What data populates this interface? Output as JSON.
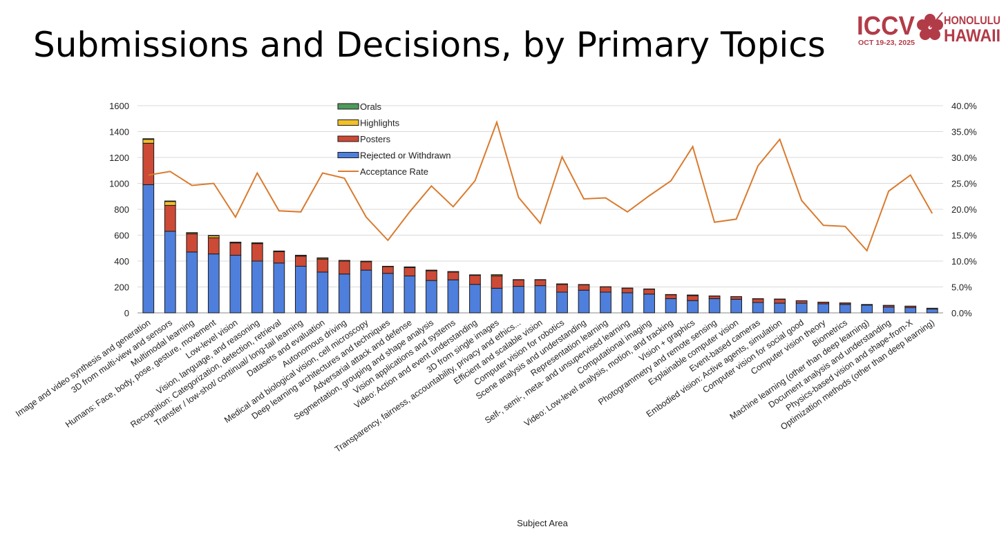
{
  "slide": {
    "title": "Submissions and Decisions, by Primary Topics"
  },
  "logo": {
    "brand": "ICCV",
    "dates": "OCT 19-23, 2025",
    "city": "HONOLULU",
    "state": "HAWAII",
    "brand_color": "#b23b48"
  },
  "colors": {
    "orals": "#4e9a5a",
    "highlights": "#f2c029",
    "posters": "#cc4a36",
    "rejected": "#4f7fdc",
    "rate": "#d97a2e"
  },
  "chart_data": {
    "type": "bar",
    "stacked": true,
    "title": "",
    "xlabel": "Subject Area",
    "ylabel": "",
    "ylim": [
      0,
      1600
    ],
    "y_ticks": [
      "0",
      "200",
      "400",
      "600",
      "800",
      "1000",
      "1200",
      "1400",
      "1600"
    ],
    "y2lim": [
      0,
      40
    ],
    "y2_ticks": [
      "0.0%",
      "5.0%",
      "10.0%",
      "15.0%",
      "20.0%",
      "25.0%",
      "30.0%",
      "35.0%",
      "40.0%"
    ],
    "grid": true,
    "legend_position": "top-center",
    "categories": [
      "Image and video synthesis and generation",
      "3D from multi-view and sensors",
      "Multimodal learning",
      "Humans: Face, body, pose, gesture, movement",
      "Low-level vision",
      "Vision, language, and reasoning",
      "Recognition: Categorization, detection, retrieval",
      "Transfer / low-shot/ continual/ long-tail learning",
      "Datasets and evaluation",
      "Autonomous driving",
      "Medical and biological vision, cell microscopy",
      "Deep learning architectures and techniques",
      "Adversarial attack and defense",
      "Segmentation, grouping and shape analysis",
      "Vision applications and systems",
      "Video: Action and event understanding",
      "3D from single images",
      "Transparency, fairness, accountability, privacy and ethics...",
      "Efficient and scalable vision",
      "Computer vision for robotics",
      "Scene analysis and understanding",
      "Representation learning",
      "Self-, semi-, meta- and unsupervised learning",
      "Computational imaging",
      "Video: Low-level analysis, motion, and tracking",
      "Vision + graphics",
      "Photogrammetry and remote sensing",
      "Explainable computer vision",
      "Event-based cameras",
      "Embodied vision: Active agents, simulation",
      "Computer vision for social good",
      "Computer vision theory",
      "Biometrics",
      "Machine learning (other than deep learning)",
      "Document analysis and understanding",
      "Physics-based vision and shape-from-X",
      "Optimization methods (other than deep learning)"
    ],
    "series": [
      {
        "name": "Rejected or Withdrawn",
        "values": [
          990,
          630,
          470,
          455,
          445,
          400,
          385,
          360,
          315,
          300,
          330,
          305,
          285,
          250,
          255,
          220,
          190,
          205,
          210,
          160,
          175,
          160,
          155,
          145,
          110,
          95,
          110,
          105,
          80,
          75,
          75,
          70,
          65,
          60,
          45,
          40,
          30
        ]
      },
      {
        "name": "Posters",
        "values": [
          320,
          200,
          140,
          125,
          95,
          135,
          88,
          78,
          100,
          100,
          65,
          52,
          65,
          75,
          60,
          70,
          95,
          50,
          45,
          60,
          42,
          40,
          35,
          38,
          30,
          38,
          20,
          20,
          28,
          30,
          18,
          12,
          11,
          5,
          12,
          11,
          6
        ]
      },
      {
        "name": "Highlights",
        "values": [
          30,
          30,
          8,
          15,
          5,
          5,
          4,
          6,
          8,
          4,
          3,
          2,
          4,
          4,
          3,
          3,
          8,
          2,
          2,
          3,
          2,
          2,
          2,
          2,
          2,
          4,
          1,
          1,
          2,
          2,
          1,
          1,
          1,
          0,
          1,
          1,
          0
        ]
      },
      {
        "name": "Orals",
        "values": [
          5,
          4,
          2,
          3,
          1,
          1,
          1,
          1,
          2,
          1,
          1,
          1,
          1,
          1,
          1,
          1,
          2,
          0,
          0,
          1,
          0,
          0,
          0,
          0,
          0,
          1,
          0,
          0,
          0,
          0,
          0,
          0,
          0,
          0,
          0,
          0,
          0
        ]
      },
      {
        "name": "Acceptance Rate",
        "axis": "right",
        "unit": "%",
        "values": [
          26.6,
          27.3,
          24.6,
          25.0,
          18.5,
          27.0,
          19.7,
          19.5,
          27.0,
          26.0,
          18.5,
          14.0,
          19.5,
          24.5,
          20.5,
          25.5,
          36.8,
          22.3,
          17.3,
          30.1,
          22.0,
          22.2,
          19.5,
          22.6,
          25.5,
          32.1,
          17.5,
          18.1,
          28.4,
          33.5,
          21.7,
          16.9,
          16.7,
          12.0,
          23.5,
          26.6,
          19.2
        ]
      }
    ]
  }
}
